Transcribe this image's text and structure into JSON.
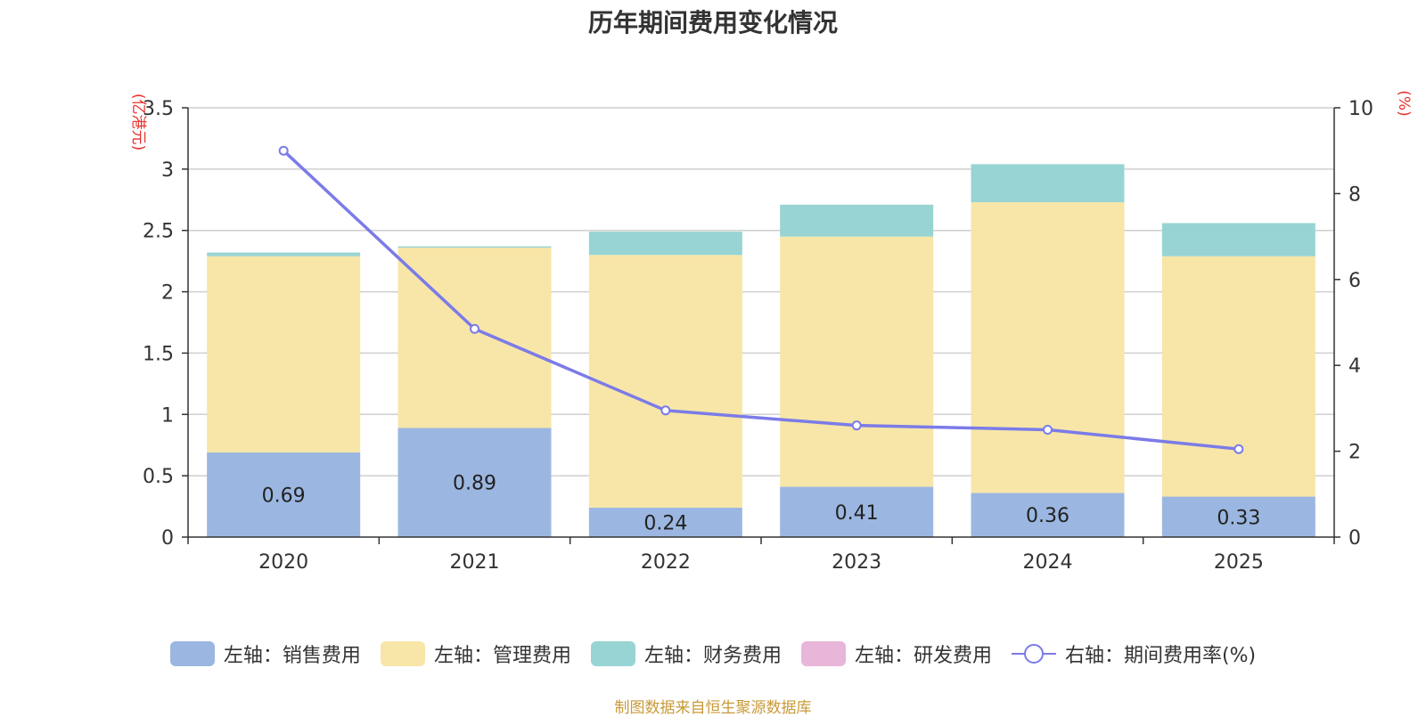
{
  "chart_data": {
    "type": "bar",
    "title": "历年期间费用变化情况",
    "categories": [
      "2020",
      "2021",
      "2022",
      "2023",
      "2024",
      "2025"
    ],
    "series": [
      {
        "name": "左轴：销售费用",
        "axis": "left",
        "color": "#9bb7e1",
        "values": [
          0.69,
          0.89,
          0.24,
          0.41,
          0.36,
          0.33
        ],
        "show_labels": true
      },
      {
        "name": "左轴：管理费用",
        "axis": "left",
        "color": "#f7e6a8",
        "values": [
          1.6,
          1.47,
          2.06,
          2.04,
          2.37,
          1.96
        ],
        "show_labels": false
      },
      {
        "name": "左轴：财务费用",
        "axis": "left",
        "color": "#98d4d4",
        "values": [
          0.03,
          0.01,
          0.19,
          0.26,
          0.31,
          0.27
        ],
        "show_labels": false
      },
      {
        "name": "左轴：研发费用",
        "axis": "left",
        "color": "#e8b6d8",
        "values": [
          0,
          0,
          0,
          0,
          0,
          0
        ],
        "show_labels": false
      },
      {
        "name": "右轴：期间费用率(%)",
        "axis": "right",
        "type": "line",
        "color": "#7b7be8",
        "values": [
          9.0,
          4.85,
          2.95,
          2.6,
          2.5,
          2.05
        ]
      }
    ],
    "left_axis": {
      "label": "(亿港元)",
      "min": 0,
      "max": 3.5,
      "ticks": [
        "0",
        "0.5",
        "1",
        "1.5",
        "2",
        "2.5",
        "3",
        "3.5"
      ]
    },
    "right_axis": {
      "label": "(%)",
      "min": 0,
      "max": 10,
      "ticks": [
        "0",
        "2",
        "4",
        "6",
        "8",
        "10"
      ]
    },
    "grid": true,
    "legend_position": "bottom"
  },
  "source_note": "制图数据来自恒生聚源数据库"
}
